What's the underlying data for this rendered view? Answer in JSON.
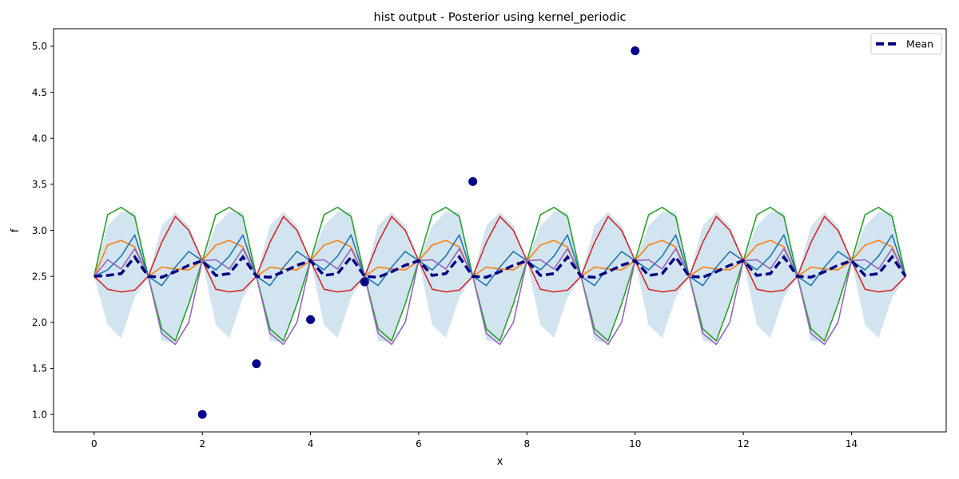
{
  "chart_data": {
    "type": "line",
    "title": "hist output - Posterior using kernel_periodic",
    "xlabel": "x",
    "ylabel": "f",
    "xlim": [
      -0.75,
      15.75
    ],
    "ylim": [
      0.81,
      5.19
    ],
    "xticks": [
      0,
      2,
      4,
      6,
      8,
      10,
      12,
      14
    ],
    "yticks": [
      1.0,
      1.5,
      2.0,
      2.5,
      3.0,
      3.5,
      4.0,
      4.5,
      5.0
    ],
    "ytick_labels": [
      "1.0",
      "1.5",
      "2.0",
      "2.5",
      "3.0",
      "3.5",
      "4.0",
      "4.5",
      "5.0"
    ],
    "grid": false,
    "legend": {
      "placement": "top-right",
      "entries": [
        "Mean"
      ]
    },
    "period": 2,
    "mean": {
      "name": "Mean",
      "color": "#000080",
      "style": "dashed",
      "x": [
        0,
        0.25,
        0.5,
        0.75,
        1.0,
        1.25,
        1.5,
        1.75,
        2.0
      ],
      "y": [
        2.5,
        2.51,
        2.53,
        2.71,
        2.5,
        2.49,
        2.55,
        2.62,
        2.67
      ]
    },
    "band": {
      "color": "#1f77b4",
      "opacity": 0.2,
      "x": [
        0,
        0.25,
        0.5,
        0.75,
        1.0,
        1.25,
        1.5,
        1.75,
        2.0
      ],
      "lower": [
        2.5,
        1.97,
        1.83,
        2.27,
        2.5,
        1.8,
        1.78,
        2.2,
        2.67
      ],
      "upper": [
        2.5,
        3.05,
        3.2,
        3.2,
        2.5,
        3.05,
        3.2,
        3.05,
        2.67
      ]
    },
    "series": [
      {
        "color": "#2ca02c",
        "x": [
          0,
          0.25,
          0.5,
          0.75,
          1.0,
          1.25,
          1.5,
          1.75,
          2.0
        ],
        "y": [
          2.5,
          3.17,
          3.25,
          3.15,
          2.5,
          1.93,
          1.8,
          2.2,
          2.67
        ]
      },
      {
        "color": "#d62728",
        "x": [
          0,
          0.25,
          0.5,
          0.75,
          1.0,
          1.25,
          1.5,
          1.75,
          2.0
        ],
        "y": [
          2.5,
          2.36,
          2.33,
          2.35,
          2.5,
          2.87,
          3.15,
          3.0,
          2.67
        ]
      },
      {
        "color": "#ff7f0e",
        "x": [
          0,
          0.25,
          0.5,
          0.75,
          1.0,
          1.25,
          1.5,
          1.75,
          2.0
        ],
        "y": [
          2.5,
          2.84,
          2.89,
          2.82,
          2.5,
          2.6,
          2.58,
          2.57,
          2.67
        ]
      },
      {
        "color": "#1f77b4",
        "x": [
          0,
          0.25,
          0.5,
          0.75,
          1.0,
          1.25,
          1.5,
          1.75,
          2.0
        ],
        "y": [
          2.5,
          2.57,
          2.72,
          2.95,
          2.5,
          2.4,
          2.6,
          2.77,
          2.67
        ]
      },
      {
        "color": "#9467bd",
        "x": [
          0,
          0.25,
          0.5,
          0.75,
          1.0,
          1.25,
          1.5,
          1.75,
          2.0
        ],
        "y": [
          2.5,
          2.68,
          2.58,
          2.8,
          2.5,
          1.88,
          1.76,
          2.0,
          2.67
        ]
      }
    ],
    "observations": {
      "color": "#00008b",
      "x": [
        2,
        3,
        4,
        5,
        7,
        10
      ],
      "y": [
        1.0,
        1.55,
        2.03,
        2.44,
        3.53,
        4.95
      ]
    }
  }
}
